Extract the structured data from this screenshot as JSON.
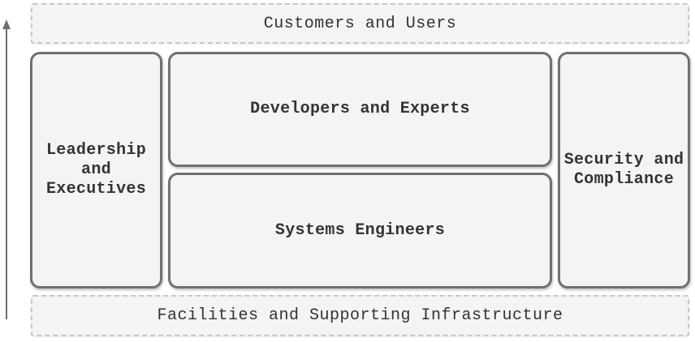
{
  "diagram": {
    "top_layer": "Customers and Users",
    "bottom_layer": "Facilities and Supporting Infrastructure",
    "left_column": "Leadership\nand\nExecutives",
    "center_top": "Developers and Experts",
    "center_bottom": "Systems Engineers",
    "right_column": "Security and\nCompliance"
  },
  "colors": {
    "box_fill": "#f4f4f4",
    "solid_border": "#707070",
    "dashed_border": "#c8c8c8",
    "arrow": "#707070",
    "text": "#333333"
  }
}
